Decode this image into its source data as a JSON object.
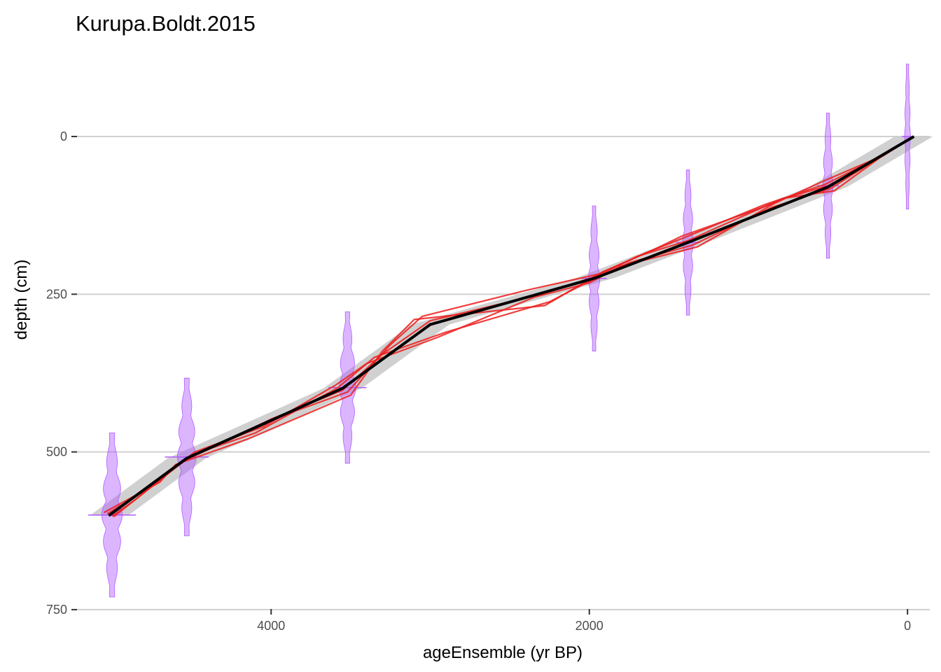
{
  "chart_data": {
    "type": "line",
    "title": "Kurupa.Boldt.2015",
    "xlabel": "ageEnsemble (yr BP)",
    "ylabel": "depth (cm)",
    "x_reversed": true,
    "y_reversed": true,
    "xlim": [
      5220,
      -140
    ],
    "ylim": [
      -111,
      749
    ],
    "x_ticks": [
      4000,
      2000,
      0
    ],
    "x_tick_labels": [
      "4000",
      "2000",
      "0"
    ],
    "y_ticks": [
      0,
      250,
      500,
      750
    ],
    "y_tick_labels": [
      "0",
      "250",
      "500",
      "750"
    ],
    "grid": "horizontal major",
    "legend": "none",
    "colors": {
      "median": "#000000",
      "ensemble": "#ee1c1c",
      "band": "#c8c8c8",
      "dates": "#b25bff",
      "grid": "#d0d0d0"
    },
    "median": {
      "name": "",
      "x": [
        -40,
        500,
        1380,
        1960,
        3000,
        3550,
        4530,
        5020
      ],
      "depth": [
        0,
        80,
        168,
        224,
        298,
        399,
        510,
        601
      ]
    },
    "band_halfwidth_years": 120,
    "ensemble": [
      {
        "x": [
          -40,
          150,
          500,
          800,
          1380,
          1700,
          1960,
          2300,
          3000,
          3300,
          3550,
          4000,
          4530,
          4800,
          5020
        ],
        "depth": [
          0,
          30,
          78,
          100,
          165,
          190,
          222,
          250,
          292,
          345,
          402,
          448,
          512,
          560,
          600
        ]
      },
      {
        "x": [
          -40,
          120,
          480,
          850,
          1350,
          1750,
          1990,
          2250,
          2900,
          3350,
          3580,
          4100,
          4500,
          4850,
          5000
        ],
        "depth": [
          0,
          24,
          82,
          112,
          172,
          200,
          228,
          262,
          310,
          350,
          398,
          470,
          505,
          575,
          602
        ]
      },
      {
        "x": [
          -40,
          200,
          520,
          900,
          1400,
          1650,
          1940,
          2400,
          3050,
          3250,
          3520,
          3900,
          4560,
          4750,
          5030
        ],
        "depth": [
          0,
          36,
          76,
          108,
          160,
          185,
          218,
          244,
          285,
          330,
          405,
          440,
          515,
          555,
          598
        ]
      },
      {
        "x": [
          -40,
          100,
          460,
          780,
          1320,
          1800,
          2000,
          2350,
          2950,
          3400,
          3600,
          4050,
          4480,
          4900,
          4990
        ],
        "depth": [
          0,
          20,
          86,
          98,
          175,
          205,
          232,
          255,
          318,
          360,
          395,
          460,
          500,
          585,
          603
        ]
      },
      {
        "x": [
          -40,
          180,
          540,
          820,
          1420,
          1600,
          1920,
          2280,
          3100,
          3300,
          3500,
          4150,
          4600,
          4700,
          5050
        ],
        "depth": [
          0,
          33,
          72,
          104,
          158,
          180,
          215,
          268,
          290,
          340,
          410,
          480,
          520,
          548,
          596
        ]
      }
    ],
    "dates": [
      {
        "age": 0,
        "depth": 0,
        "spread_years": 14,
        "depth_sd": 115
      },
      {
        "age": 500,
        "depth": 78,
        "spread_years": 28,
        "depth_sd": 115
      },
      {
        "age": 1380,
        "depth": 168,
        "spread_years": 30,
        "depth_sd": 115
      },
      {
        "age": 1970,
        "depth": 225,
        "spread_years": 32,
        "depth_sd": 115
      },
      {
        "age": 3520,
        "depth": 398,
        "spread_years": 48,
        "depth_sd": 120
      },
      {
        "age": 4530,
        "depth": 508,
        "spread_years": 55,
        "depth_sd": 125
      },
      {
        "age": 5000,
        "depth": 600,
        "spread_years": 60,
        "depth_sd": 130
      }
    ]
  }
}
